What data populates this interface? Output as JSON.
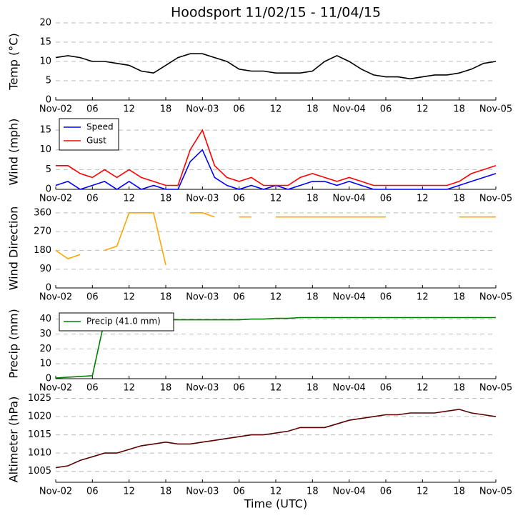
{
  "chart_data": [
    {
      "type": "line",
      "title": "Hoodsport 11/02/15 - 11/04/15",
      "ylabel": "Temp (°C)",
      "x": [
        0,
        2,
        4,
        6,
        8,
        10,
        12,
        14,
        16,
        18,
        20,
        22,
        24,
        26,
        28,
        30,
        32,
        34,
        36,
        38,
        40,
        42,
        44,
        46,
        48,
        50,
        52,
        54,
        56,
        58,
        60,
        62,
        64,
        66,
        68,
        70,
        72
      ],
      "xlim": [
        0,
        72
      ],
      "xticks": [
        {
          "value": 0,
          "label": "Nov-02"
        },
        {
          "value": 6,
          "label": "06"
        },
        {
          "value": 12,
          "label": "12"
        },
        {
          "value": 18,
          "label": "18"
        },
        {
          "value": 24,
          "label": "Nov-03"
        },
        {
          "value": 30,
          "label": "06"
        },
        {
          "value": 36,
          "label": "12"
        },
        {
          "value": 42,
          "label": "18"
        },
        {
          "value": 48,
          "label": "Nov-04"
        },
        {
          "value": 54,
          "label": "06"
        },
        {
          "value": 60,
          "label": "12"
        },
        {
          "value": 66,
          "label": "18"
        },
        {
          "value": 72,
          "label": "Nov-05"
        }
      ],
      "ylim": [
        0,
        20
      ],
      "yticks": [
        0,
        5,
        10,
        15,
        20
      ],
      "grid": true,
      "series": [
        {
          "color": "#000000",
          "values": [
            11,
            11.5,
            11,
            10,
            10,
            9.5,
            9,
            7.5,
            7,
            9,
            11,
            12,
            12,
            11,
            10,
            8,
            7.5,
            7.5,
            7,
            7,
            7,
            7.5,
            10,
            11.5,
            10,
            8,
            6.5,
            6,
            6,
            5.5,
            6,
            6.5,
            6.5,
            7,
            8,
            9.5,
            10
          ]
        }
      ]
    },
    {
      "type": "line",
      "ylabel": "Wind (mph)",
      "x": [
        0,
        2,
        4,
        6,
        8,
        10,
        12,
        14,
        16,
        18,
        20,
        22,
        24,
        26,
        28,
        30,
        32,
        34,
        36,
        38,
        40,
        42,
        44,
        46,
        48,
        50,
        52,
        54,
        56,
        58,
        60,
        62,
        64,
        66,
        68,
        70,
        72
      ],
      "xlim": [
        0,
        72
      ],
      "xticks": [
        {
          "value": 0,
          "label": "Nov-02"
        },
        {
          "value": 6,
          "label": "06"
        },
        {
          "value": 12,
          "label": "12"
        },
        {
          "value": 18,
          "label": "18"
        },
        {
          "value": 24,
          "label": "Nov-03"
        },
        {
          "value": 30,
          "label": "06"
        },
        {
          "value": 36,
          "label": "12"
        },
        {
          "value": 42,
          "label": "18"
        },
        {
          "value": 48,
          "label": "Nov-04"
        },
        {
          "value": 54,
          "label": "06"
        },
        {
          "value": 60,
          "label": "12"
        },
        {
          "value": 66,
          "label": "18"
        },
        {
          "value": 72,
          "label": "Nov-05"
        }
      ],
      "ylim": [
        0,
        19
      ],
      "yticks": [
        0,
        5,
        10,
        15
      ],
      "grid": true,
      "legend": "upper-left",
      "series": [
        {
          "name": "Speed",
          "color": "#0000ff",
          "values": [
            1,
            2,
            0,
            1,
            2,
            0,
            2,
            0,
            1,
            0,
            0,
            7,
            10,
            3,
            1,
            0,
            1,
            0,
            1,
            0,
            1,
            2,
            2,
            1,
            2,
            1,
            0,
            0,
            0,
            0,
            0,
            0,
            0,
            1,
            2,
            3,
            4
          ]
        },
        {
          "name": "Gust",
          "color": "#ff0000",
          "values": [
            6,
            6,
            4,
            3,
            5,
            3,
            5,
            3,
            2,
            1,
            1,
            10,
            15,
            6,
            3,
            2,
            3,
            1,
            1,
            1,
            3,
            4,
            3,
            2,
            3,
            2,
            1,
            1,
            1,
            1,
            1,
            1,
            1,
            2,
            4,
            5,
            6
          ]
        }
      ]
    },
    {
      "type": "line",
      "ylabel": "Wind Direction",
      "x": [
        0,
        2,
        4,
        6,
        8,
        10,
        12,
        14,
        16,
        18,
        20,
        22,
        24,
        26,
        28,
        30,
        32,
        34,
        36,
        38,
        40,
        42,
        44,
        46,
        48,
        50,
        52,
        54,
        56,
        58,
        60,
        62,
        64,
        66,
        68,
        70,
        72
      ],
      "xlim": [
        0,
        72
      ],
      "xticks": [
        {
          "value": 0,
          "label": "Nov-02"
        },
        {
          "value": 6,
          "label": "06"
        },
        {
          "value": 12,
          "label": "12"
        },
        {
          "value": 18,
          "label": "18"
        },
        {
          "value": 24,
          "label": "Nov-03"
        },
        {
          "value": 30,
          "label": "06"
        },
        {
          "value": 36,
          "label": "12"
        },
        {
          "value": 42,
          "label": "18"
        },
        {
          "value": 48,
          "label": "Nov-04"
        },
        {
          "value": 54,
          "label": "06"
        },
        {
          "value": 60,
          "label": "12"
        },
        {
          "value": 66,
          "label": "18"
        },
        {
          "value": 72,
          "label": "Nov-05"
        }
      ],
      "ylim": [
        0,
        380
      ],
      "yticks": [
        0,
        90,
        180,
        270,
        360
      ],
      "grid": true,
      "series": [
        {
          "color": "#ffa500",
          "values": [
            180,
            140,
            160,
            null,
            180,
            200,
            360,
            360,
            360,
            110,
            null,
            360,
            360,
            340,
            null,
            340,
            340,
            null,
            340,
            340,
            340,
            340,
            340,
            340,
            340,
            340,
            340,
            340,
            null,
            null,
            null,
            null,
            null,
            340,
            340,
            340,
            340
          ]
        }
      ]
    },
    {
      "type": "line",
      "ylabel": "Precip (mm)",
      "x": [
        0,
        2,
        4,
        6,
        8,
        10,
        12,
        14,
        16,
        18,
        20,
        22,
        24,
        26,
        28,
        30,
        32,
        34,
        36,
        38,
        40,
        42,
        44,
        46,
        48,
        50,
        52,
        54,
        56,
        58,
        60,
        62,
        64,
        66,
        68,
        70,
        72
      ],
      "xlim": [
        0,
        72
      ],
      "xticks": [
        {
          "value": 0,
          "label": "Nov-02"
        },
        {
          "value": 6,
          "label": "06"
        },
        {
          "value": 12,
          "label": "12"
        },
        {
          "value": 18,
          "label": "18"
        },
        {
          "value": 24,
          "label": "Nov-03"
        },
        {
          "value": 30,
          "label": "06"
        },
        {
          "value": 36,
          "label": "12"
        },
        {
          "value": 42,
          "label": "18"
        },
        {
          "value": 48,
          "label": "Nov-04"
        },
        {
          "value": 54,
          "label": "06"
        },
        {
          "value": 60,
          "label": "12"
        },
        {
          "value": 66,
          "label": "18"
        },
        {
          "value": 72,
          "label": "Nov-05"
        }
      ],
      "ylim": [
        0,
        47
      ],
      "yticks": [
        0,
        10,
        20,
        30,
        40
      ],
      "grid": true,
      "legend": "upper-left",
      "series": [
        {
          "name": "Precip (41.0 mm)",
          "color": "#008000",
          "values": [
            0.5,
            1,
            1.5,
            2,
            39.5,
            39.5,
            39.5,
            39.5,
            39.5,
            39.5,
            39.5,
            39.5,
            39.5,
            39.5,
            39.5,
            39.5,
            40,
            40,
            40.5,
            40.5,
            41,
            41,
            41,
            41,
            41,
            41,
            41,
            41,
            41,
            41,
            41,
            41,
            41,
            41,
            41,
            41,
            41
          ]
        }
      ]
    },
    {
      "type": "line",
      "ylabel": "Altimeter (hPa)",
      "xlabel": "Time (UTC)",
      "x": [
        0,
        2,
        4,
        6,
        8,
        10,
        12,
        14,
        16,
        18,
        20,
        22,
        24,
        26,
        28,
        30,
        32,
        34,
        36,
        38,
        40,
        42,
        44,
        46,
        48,
        50,
        52,
        54,
        56,
        58,
        60,
        62,
        64,
        66,
        68,
        70,
        72
      ],
      "xlim": [
        0,
        72
      ],
      "xticks": [
        {
          "value": 0,
          "label": "Nov-02"
        },
        {
          "value": 6,
          "label": "06"
        },
        {
          "value": 12,
          "label": "12"
        },
        {
          "value": 18,
          "label": "18"
        },
        {
          "value": 24,
          "label": "Nov-03"
        },
        {
          "value": 30,
          "label": "06"
        },
        {
          "value": 36,
          "label": "12"
        },
        {
          "value": 42,
          "label": "18"
        },
        {
          "value": 48,
          "label": "Nov-04"
        },
        {
          "value": 54,
          "label": "06"
        },
        {
          "value": 60,
          "label": "12"
        },
        {
          "value": 66,
          "label": "18"
        },
        {
          "value": 72,
          "label": "Nov-05"
        }
      ],
      "ylim": [
        1002,
        1025.5
      ],
      "yticks": [
        1005,
        1010,
        1015,
        1020,
        1025
      ],
      "grid": true,
      "series": [
        {
          "color": "#5a0000",
          "values": [
            1006,
            1006.5,
            1008,
            1009,
            1010,
            1010,
            1011,
            1012,
            1012.5,
            1013,
            1012.5,
            1012.5,
            1013,
            1013.5,
            1014,
            1014.5,
            1015,
            1015,
            1015.5,
            1016,
            1017,
            1017,
            1017,
            1018,
            1019,
            1019.5,
            1020,
            1020.5,
            1020.5,
            1021,
            1021,
            1021,
            1021.5,
            1022,
            1021,
            1020.5,
            1020
          ]
        }
      ]
    }
  ]
}
